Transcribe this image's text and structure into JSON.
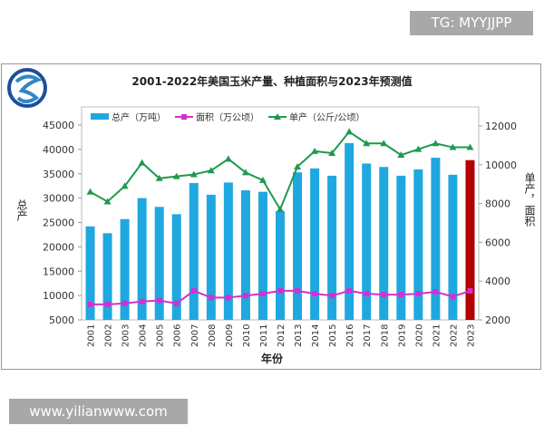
{
  "watermark_top": "TG: MYYJJPP",
  "watermark_bottom": "www.yilianwww.com",
  "chart_data": {
    "type": "bar",
    "title": "2001-2022年美国玉米产量、种植面积与2023年预测值",
    "xlabel": "年份",
    "ylabel_left": "总产",
    "ylabel_right": "单产，面积",
    "ylim_left": [
      5000,
      45000
    ],
    "yticks_left": [
      5000,
      10000,
      15000,
      20000,
      25000,
      30000,
      35000,
      40000,
      45000
    ],
    "ylim_right": [
      2000,
      12000
    ],
    "yticks_right": [
      2000,
      4000,
      6000,
      8000,
      10000,
      12000
    ],
    "legend_position": "top-left",
    "grid": false,
    "categories": [
      "2001",
      "2002",
      "2003",
      "2004",
      "2005",
      "2006",
      "2007",
      "2008",
      "2009",
      "2010",
      "2011",
      "2012",
      "2013",
      "2014",
      "2015",
      "2016",
      "2017",
      "2018",
      "2019",
      "2020",
      "2021",
      "2022",
      "2023"
    ],
    "series": [
      {
        "name": "总产（万吨）",
        "type": "bar",
        "axis": "left",
        "color": "#1fa8df",
        "highlight_color": "#b30000",
        "highlight_index": 22,
        "values": [
          24200,
          22800,
          25700,
          30000,
          28200,
          26700,
          33100,
          30700,
          33200,
          31600,
          31300,
          27300,
          35300,
          36100,
          34600,
          41300,
          37100,
          36400,
          34600,
          35900,
          38300,
          34800,
          37800
        ]
      },
      {
        "name": "面积（万公顷）",
        "type": "line",
        "axis": "right",
        "color": "#d62fd0",
        "marker": "square",
        "values": [
          2800,
          2800,
          2850,
          2950,
          3000,
          2850,
          3500,
          3150,
          3150,
          3250,
          3350,
          3500,
          3500,
          3350,
          3250,
          3500,
          3350,
          3300,
          3300,
          3350,
          3450,
          3200,
          3500
        ]
      },
      {
        "name": "单产（公斤/公顷）",
        "type": "line",
        "axis": "right",
        "color": "#1e9a4e",
        "marker": "triangle",
        "values": [
          8600,
          8100,
          8900,
          10100,
          9300,
          9400,
          9500,
          9700,
          10300,
          9600,
          9200,
          7700,
          9900,
          10700,
          10600,
          11700,
          11100,
          11100,
          10500,
          10800,
          11100,
          10900,
          10900
        ]
      }
    ]
  }
}
